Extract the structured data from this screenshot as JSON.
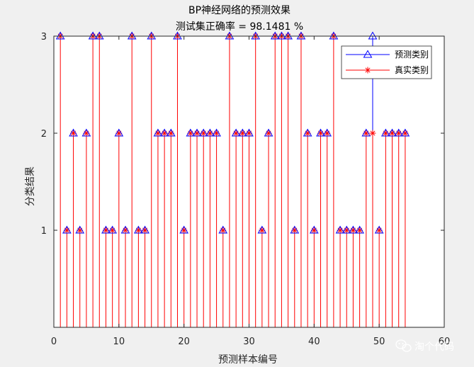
{
  "chart_data": {
    "type": "stem",
    "title": "BP神经网络的预测效果",
    "subtitle": "测试集正确率 = 98.1481 %",
    "xlabel": "预测样本编号",
    "ylabel": "分类结果",
    "xlim": [
      0,
      60
    ],
    "ylim": [
      0,
      3
    ],
    "xticks": [
      "0",
      "10",
      "20",
      "30",
      "40",
      "50",
      "60"
    ],
    "yticks": [
      "1",
      "2",
      "3"
    ],
    "legend_position": "top-right",
    "x": [
      1,
      2,
      3,
      4,
      5,
      6,
      7,
      8,
      9,
      10,
      11,
      12,
      13,
      14,
      15,
      16,
      17,
      18,
      19,
      20,
      21,
      22,
      23,
      24,
      25,
      26,
      27,
      28,
      29,
      30,
      31,
      32,
      33,
      34,
      35,
      36,
      37,
      38,
      39,
      40,
      41,
      42,
      43,
      44,
      45,
      46,
      47,
      48,
      49,
      50,
      51,
      52,
      53,
      54
    ],
    "series": [
      {
        "name": "预测类别",
        "marker": "triangle",
        "color": "#0000ff",
        "values": [
          3,
          1,
          2,
          1,
          2,
          3,
          3,
          1,
          1,
          2,
          1,
          3,
          1,
          1,
          3,
          2,
          2,
          2,
          3,
          1,
          2,
          2,
          2,
          2,
          2,
          1,
          3,
          2,
          2,
          2,
          3,
          1,
          2,
          3,
          3,
          3,
          1,
          3,
          2,
          1,
          2,
          2,
          3,
          1,
          1,
          1,
          1,
          2,
          3,
          1,
          2,
          2,
          2,
          2
        ]
      },
      {
        "name": "真实类别",
        "marker": "asterisk",
        "color": "#ff0000",
        "values": [
          3,
          1,
          2,
          1,
          2,
          3,
          3,
          1,
          1,
          2,
          1,
          3,
          1,
          1,
          3,
          2,
          2,
          2,
          3,
          1,
          2,
          2,
          2,
          2,
          2,
          1,
          3,
          2,
          2,
          2,
          3,
          1,
          2,
          3,
          3,
          3,
          1,
          3,
          2,
          1,
          2,
          2,
          3,
          1,
          1,
          1,
          1,
          2,
          2,
          1,
          2,
          2,
          2,
          2
        ]
      }
    ]
  },
  "watermark": {
    "text": "淘个代码",
    "icon": "wechat-icon"
  },
  "colors": {
    "figure_bg": "#f0f0f0",
    "axes_bg": "#ffffff",
    "predicted": "#0000ff",
    "actual": "#ff0000"
  }
}
